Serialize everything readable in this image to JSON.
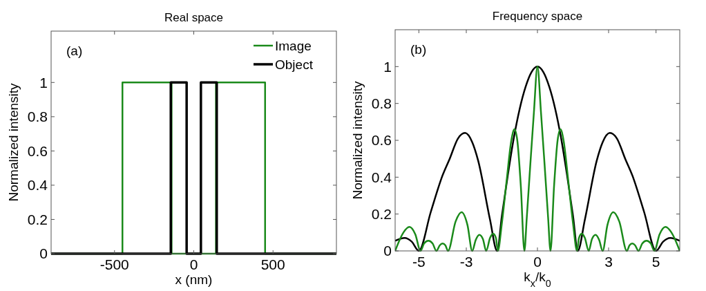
{
  "chart_data": [
    {
      "type": "line",
      "title": "Real space",
      "xlabel": "x (nm)",
      "ylabel": "Normalized intensity",
      "annotations": [
        "(a)"
      ],
      "xlim": [
        -900,
        900
      ],
      "xticks": [
        -500,
        0,
        500
      ],
      "ylim": [
        0,
        1.3
      ],
      "yticks": [
        0,
        0.2,
        0.4,
        0.6,
        0.8,
        1
      ],
      "legend": "top right",
      "grid": false,
      "series": [
        {
          "name": "Image",
          "color": "#1a8a1a",
          "x": [
            -900,
            -450,
            -450,
            -140,
            -140,
            140,
            140,
            450,
            450,
            900
          ],
          "values": [
            0,
            0,
            1,
            1,
            0,
            0,
            1,
            1,
            0,
            0
          ]
        },
        {
          "name": "Object",
          "color": "#000000",
          "x": [
            -900,
            -145,
            -145,
            -45,
            -45,
            45,
            45,
            145,
            145,
            900
          ],
          "values": [
            0,
            0,
            1,
            1,
            0,
            0,
            1,
            1,
            0,
            0
          ]
        }
      ]
    },
    {
      "type": "line",
      "title": "Frequency space",
      "xlabel": "k$_{x}$/k$_{0}$",
      "ylabel": "Normalized intensity",
      "annotations": [
        "(b)"
      ],
      "xlim": [
        -6,
        6
      ],
      "xticks": [
        -5,
        -3,
        0,
        3,
        5
      ],
      "ylim": [
        0,
        1.2
      ],
      "yticks": [
        0,
        0.2,
        0.4,
        0.6,
        0.8,
        1
      ],
      "legend": false,
      "grid": false,
      "series": [
        {
          "color": "#000000",
          "x": [
            -6,
            -5.6,
            -5.3,
            -5,
            -4.5,
            -4,
            -3.7,
            -3.35,
            -3.05,
            -2.75,
            -2.5,
            -2,
            -1.7,
            -1.5,
            -1.25,
            -1,
            -0.75,
            -0.5,
            -0.25,
            0,
            0.25,
            0.5,
            0.75,
            1,
            1.25,
            1.5,
            1.7,
            2,
            2.5,
            2.75,
            3.05,
            3.35,
            3.7,
            4,
            4.5,
            5,
            5.3,
            5.6,
            6
          ],
          "values": [
            0.055,
            0.07,
            0.05,
            0,
            0.21,
            0.41,
            0.5,
            0.61,
            0.64,
            0.59,
            0.49,
            0.17,
            0,
            0.19,
            0.41,
            0.61,
            0.77,
            0.89,
            0.97,
            1,
            0.97,
            0.89,
            0.77,
            0.61,
            0.41,
            0.19,
            0,
            0.17,
            0.49,
            0.59,
            0.64,
            0.61,
            0.5,
            0.41,
            0.21,
            0,
            0.05,
            0.07,
            0.055
          ]
        },
        {
          "color": "#1a8a1a",
          "x": [
            -6,
            -5.65,
            -5.4,
            -5.15,
            -4.93,
            -4.78,
            -4.6,
            -4.42,
            -4.26,
            -4.12,
            -4,
            -3.88,
            -3.77,
            -3.45,
            -3.2,
            -2.95,
            -2.75,
            -2.6,
            -2.45,
            -2.3,
            -2.16,
            -2,
            -1.87,
            -1.75,
            -1.67,
            -1.5,
            -1.3,
            -1.1,
            -0.97,
            -0.85,
            -0.7,
            -0.55,
            -0.45,
            -0.3,
            -0.15,
            0,
            0.15,
            0.3,
            0.45,
            0.55,
            0.7,
            0.85,
            0.97,
            1.1,
            1.3,
            1.5,
            1.67,
            1.75,
            1.87,
            2,
            2.16,
            2.3,
            2.45,
            2.6,
            2.75,
            2.95,
            3.2,
            3.45,
            3.77,
            3.88,
            4,
            4.12,
            4.26,
            4.42,
            4.6,
            4.78,
            4.93,
            5.15,
            5.4,
            5.65,
            6
          ],
          "values": [
            0,
            0.1,
            0.13,
            0.09,
            0,
            0.04,
            0.055,
            0.04,
            0,
            0.03,
            0.04,
            0.03,
            0,
            0.16,
            0.21,
            0.14,
            0,
            0.06,
            0.087,
            0.065,
            0,
            0.07,
            0.094,
            0.07,
            0,
            0.15,
            0.38,
            0.6,
            0.66,
            0.6,
            0.35,
            0,
            0.18,
            0.47,
            0.75,
            1,
            0.75,
            0.47,
            0.18,
            0,
            0.35,
            0.6,
            0.66,
            0.6,
            0.38,
            0.15,
            0,
            0.07,
            0.094,
            0.07,
            0,
            0.065,
            0.087,
            0.06,
            0,
            0.14,
            0.21,
            0.16,
            0,
            0.03,
            0.04,
            0.03,
            0,
            0.04,
            0.055,
            0.04,
            0,
            0.09,
            0.13,
            0.1,
            0
          ]
        }
      ]
    }
  ]
}
